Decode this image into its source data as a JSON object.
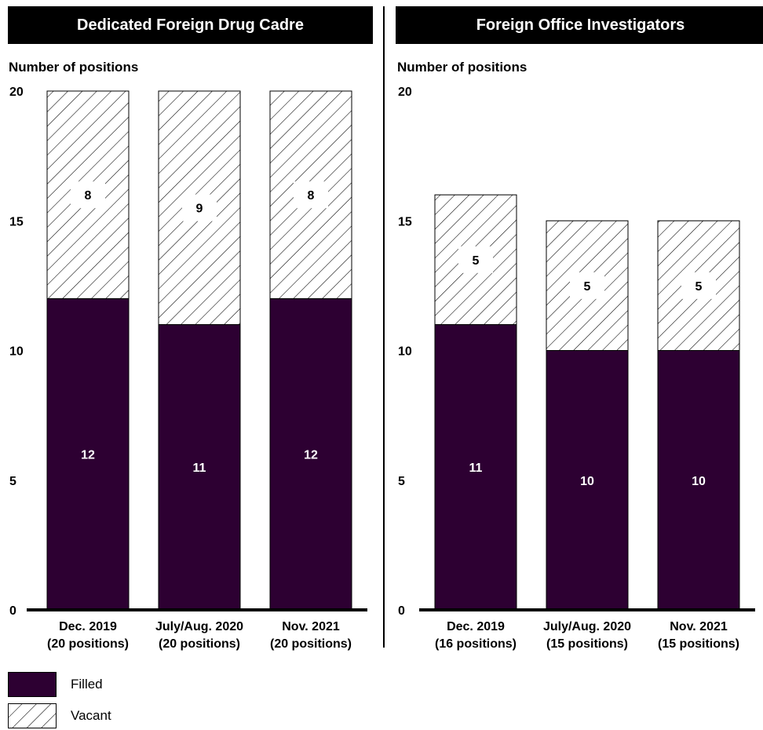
{
  "colors": {
    "filled": "#2d0032",
    "vacant_hatch": "#000000"
  },
  "chart_data": [
    {
      "type": "bar",
      "stacked": true,
      "title": "Dedicated Foreign Drug Cadre",
      "ylabel": "Number of positions",
      "ylim": [
        0,
        20
      ],
      "yticks": [
        "0",
        "5",
        "10",
        "15",
        "20"
      ],
      "categories": [
        {
          "line1": "Dec. 2019",
          "line2": "(20 positions)"
        },
        {
          "line1": "July/Aug. 2020",
          "line2": "(20 positions)"
        },
        {
          "line1": "Nov. 2021",
          "line2": "(20 positions)"
        }
      ],
      "series": [
        {
          "name": "Filled",
          "values": [
            12,
            11,
            12
          ]
        },
        {
          "name": "Vacant",
          "values": [
            8,
            9,
            8
          ]
        }
      ]
    },
    {
      "type": "bar",
      "stacked": true,
      "title": "Foreign Office Investigators",
      "ylabel": "Number of positions",
      "ylim": [
        0,
        20
      ],
      "yticks": [
        "0",
        "5",
        "10",
        "15",
        "20"
      ],
      "categories": [
        {
          "line1": "Dec. 2019",
          "line2": "(16 positions)"
        },
        {
          "line1": "July/Aug. 2020",
          "line2": "(15 positions)"
        },
        {
          "line1": "Nov. 2021",
          "line2": "(15 positions)"
        }
      ],
      "series": [
        {
          "name": "Filled",
          "values": [
            11,
            10,
            10
          ]
        },
        {
          "name": "Vacant",
          "values": [
            5,
            5,
            5
          ]
        }
      ]
    }
  ],
  "legend": [
    {
      "label": "Filled"
    },
    {
      "label": "Vacant"
    }
  ]
}
